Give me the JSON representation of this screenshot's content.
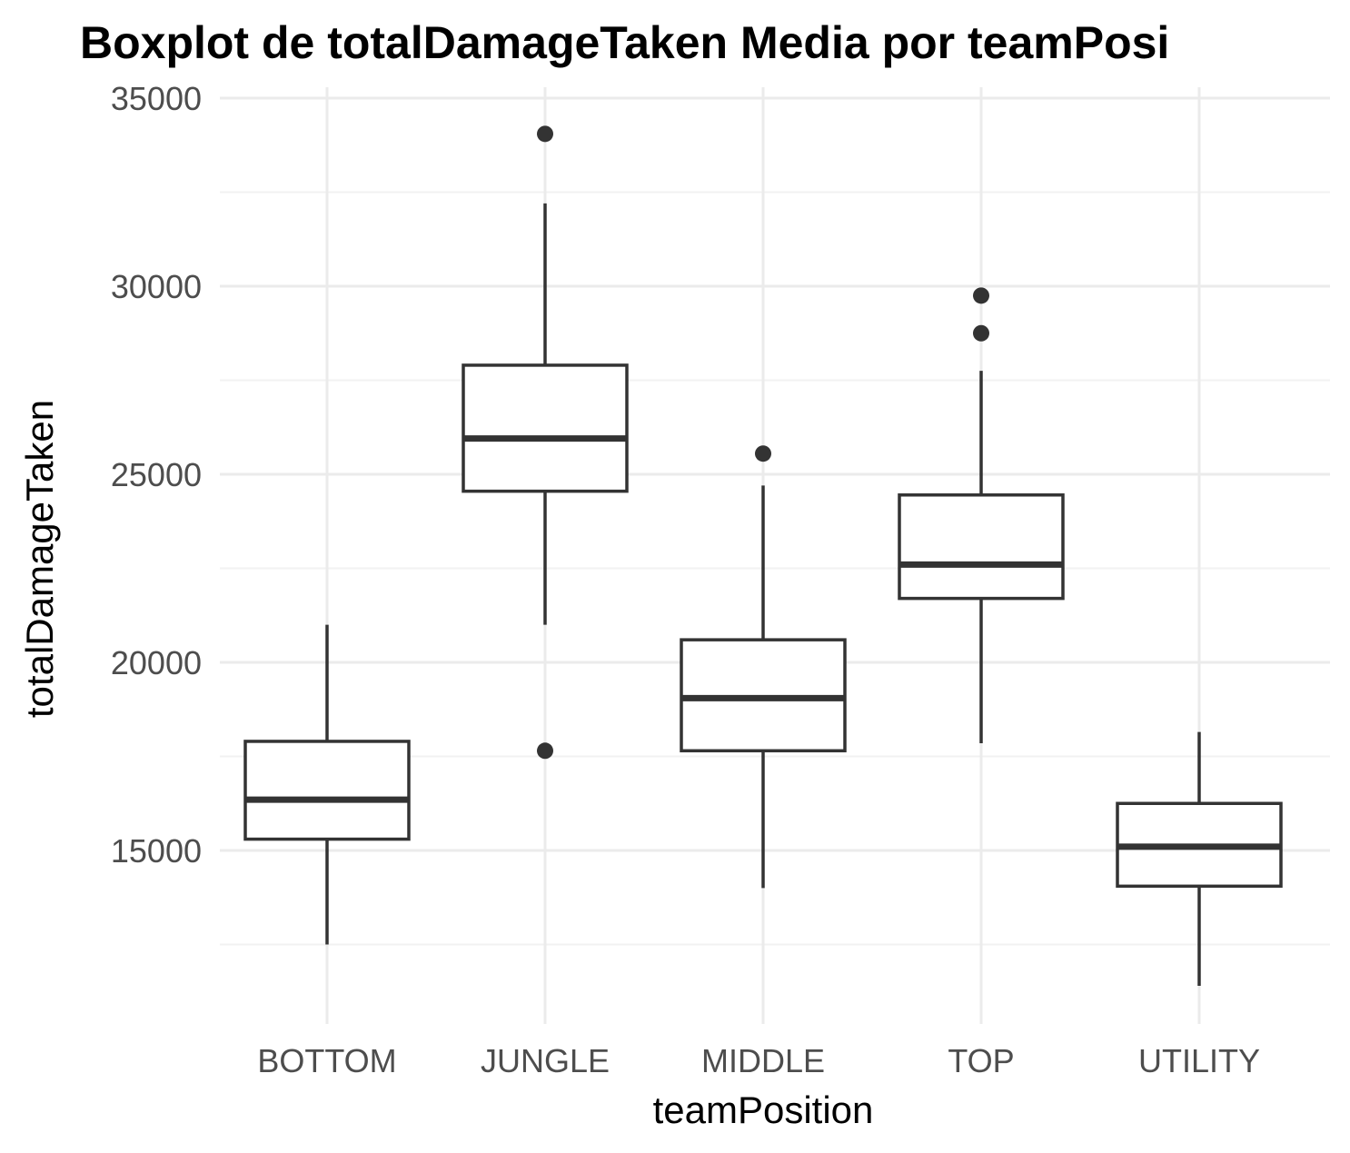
{
  "chart_data": {
    "type": "boxplot",
    "title": "Boxplot de totalDamageTaken Media por teamPosi",
    "xlabel": "teamPosition",
    "ylabel": "totalDamageTaken",
    "ylim": [
      10500,
      35300
    ],
    "yticks": [
      15000,
      20000,
      25000,
      30000,
      35000
    ],
    "yticks_minor": [
      12500,
      17500,
      22500,
      27500,
      32500
    ],
    "grid": true,
    "categories": [
      "BOTTOM",
      "JUNGLE",
      "MIDDLE",
      "TOP",
      "UTILITY"
    ],
    "boxes": [
      {
        "category": "BOTTOM",
        "whisker_low": 12500,
        "q1": 15300,
        "median": 16350,
        "q3": 17900,
        "whisker_high": 21000,
        "outliers": []
      },
      {
        "category": "JUNGLE",
        "whisker_low": 21000,
        "q1": 24550,
        "median": 25950,
        "q3": 27900,
        "whisker_high": 32200,
        "outliers": [
          34050,
          17650
        ]
      },
      {
        "category": "MIDDLE",
        "whisker_low": 14000,
        "q1": 17650,
        "median": 19050,
        "q3": 20600,
        "whisker_high": 24700,
        "outliers": [
          25550
        ]
      },
      {
        "category": "TOP",
        "whisker_low": 17850,
        "q1": 21700,
        "median": 22600,
        "q3": 24450,
        "whisker_high": 27750,
        "outliers": [
          29750,
          28750
        ]
      },
      {
        "category": "UTILITY",
        "whisker_low": 11400,
        "q1": 14050,
        "median": 15100,
        "q3": 16250,
        "whisker_high": 18150,
        "outliers": []
      }
    ],
    "colors": {
      "box_stroke": "#333333",
      "box_fill": "#ffffff",
      "grid": "#ebebeb"
    }
  }
}
